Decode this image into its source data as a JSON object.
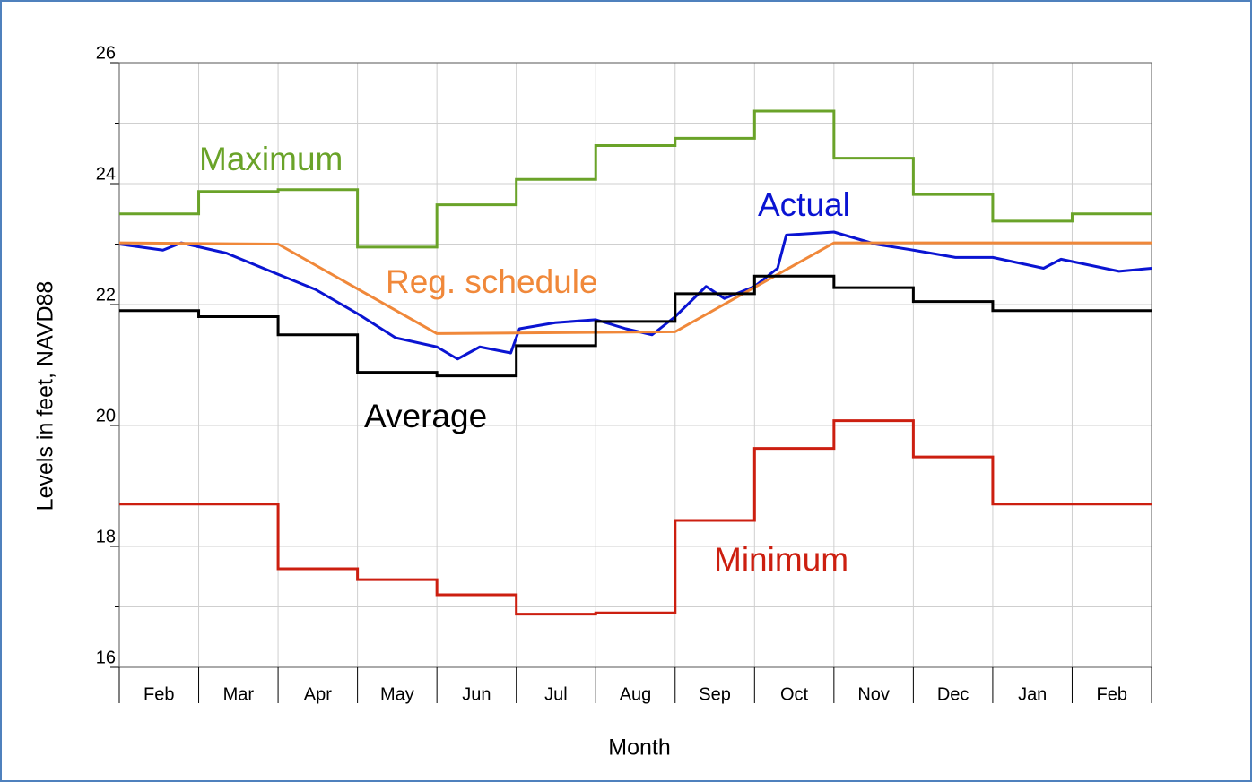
{
  "chart_data": {
    "type": "line",
    "x_label": "Month",
    "y_label": "Levels in feet, NAVD88",
    "categories": [
      "Feb",
      "Mar",
      "Apr",
      "May",
      "Jun",
      "Jul",
      "Aug",
      "Sep",
      "Oct",
      "Nov",
      "Dec",
      "Jan",
      "Feb"
    ],
    "ylim": [
      16,
      26
    ],
    "yticks": [
      16,
      18,
      20,
      22,
      24,
      26
    ],
    "yminor": [
      17,
      19,
      21,
      23,
      25
    ],
    "grid": true,
    "series": [
      {
        "name": "Maximum",
        "color": "#6aa329",
        "step": true,
        "values": [
          23.5,
          23.87,
          23.9,
          22.95,
          23.65,
          24.07,
          24.63,
          24.75,
          25.2,
          24.42,
          23.82,
          23.38,
          23.5
        ]
      },
      {
        "name": "Actual",
        "color": "#0a14d2",
        "step": false,
        "x": [
          0,
          0.55,
          0.78,
          1.35,
          2,
          2.47,
          3,
          3.48,
          4,
          4.26,
          4.54,
          4.93,
          5.04,
          5.49,
          6,
          6.38,
          6.71,
          7,
          7.39,
          7.62,
          8,
          8.29,
          8.4,
          9,
          9.52,
          10,
          10.53,
          11,
          11.64,
          11.86,
          12.59,
          13
        ],
        "values": [
          23.0,
          22.9,
          23.02,
          22.85,
          22.5,
          22.25,
          21.85,
          21.45,
          21.3,
          21.1,
          21.3,
          21.2,
          21.6,
          21.7,
          21.75,
          21.6,
          21.5,
          21.8,
          22.3,
          22.1,
          22.3,
          22.6,
          23.15,
          23.2,
          23.0,
          22.9,
          22.78,
          22.78,
          22.6,
          22.75,
          22.55,
          22.6
        ]
      },
      {
        "name": "Reg. schedule",
        "color": "#f0883a",
        "step": false,
        "x": [
          0,
          2,
          4,
          7,
          9,
          13
        ],
        "values": [
          23.02,
          23.0,
          21.52,
          21.55,
          23.02,
          23.02
        ]
      },
      {
        "name": "Average",
        "color": "#000000",
        "step": true,
        "values": [
          21.9,
          21.8,
          21.5,
          20.88,
          20.82,
          21.32,
          21.72,
          22.18,
          22.47,
          22.28,
          22.05,
          21.9,
          21.9
        ]
      },
      {
        "name": "Minimum",
        "color": "#cc1f10",
        "step": true,
        "values": [
          18.7,
          18.7,
          17.63,
          17.45,
          17.2,
          16.88,
          16.9,
          18.43,
          19.62,
          20.08,
          19.48,
          18.7,
          18.7
        ]
      }
    ]
  }
}
